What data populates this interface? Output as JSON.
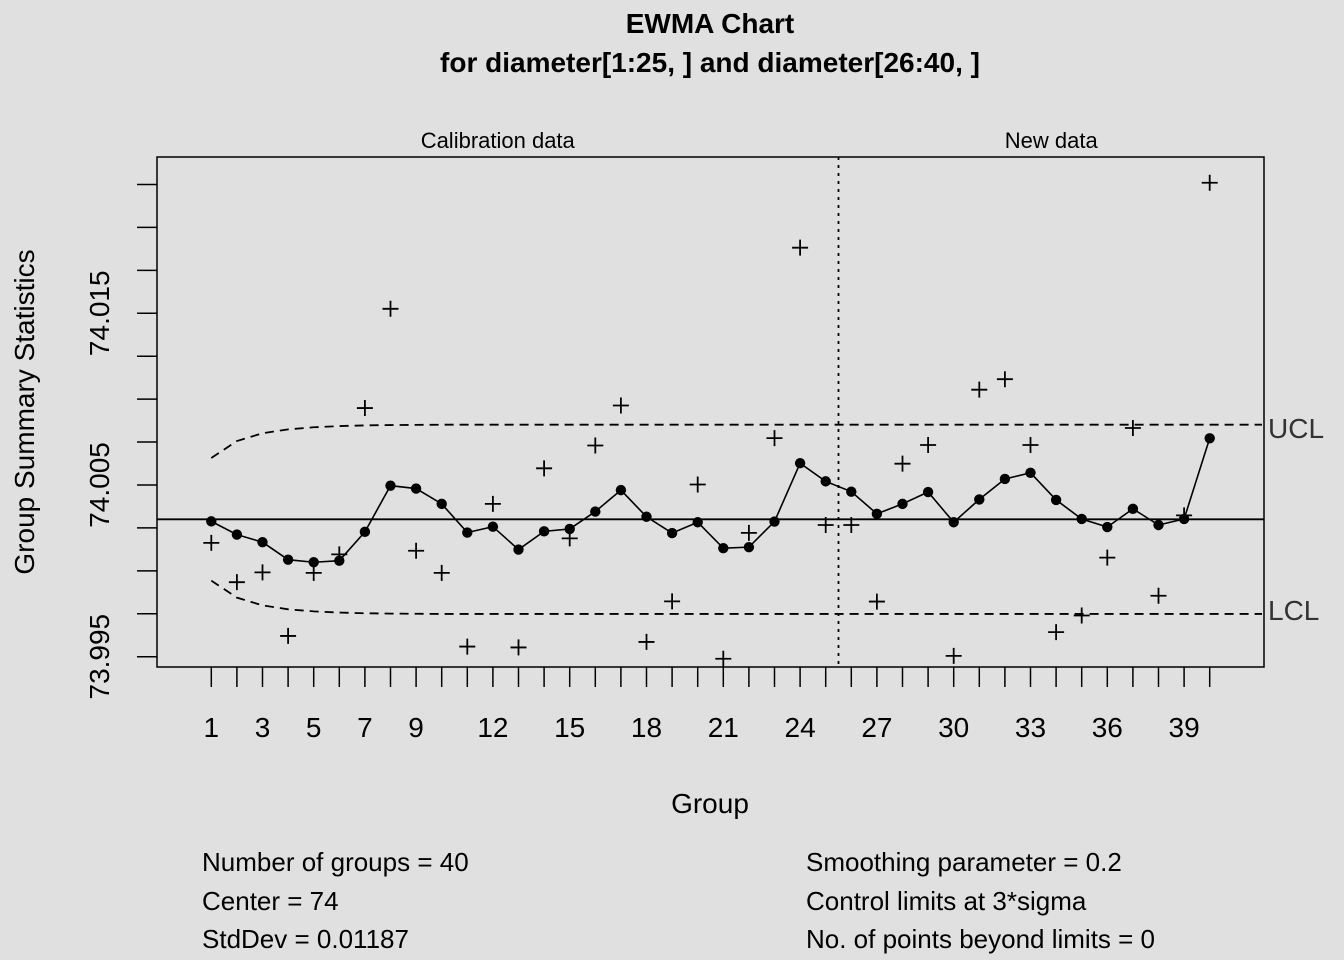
{
  "chart_data": {
    "type": "line",
    "title": "EWMA Chart",
    "subtitle": "for diameter[1:25, ] and diameter[26:40, ]",
    "xlabel": "Group",
    "ylabel": "Group Summary Statistics",
    "sections": [
      "Calibration data",
      "New data"
    ],
    "calibration_end": 25,
    "x": [
      1,
      2,
      3,
      4,
      5,
      6,
      7,
      8,
      9,
      10,
      11,
      12,
      13,
      14,
      15,
      16,
      17,
      18,
      19,
      20,
      21,
      22,
      23,
      24,
      25,
      26,
      27,
      28,
      29,
      30,
      31,
      32,
      33,
      34,
      35,
      36,
      37,
      38,
      39,
      40
    ],
    "x_tick_labels": [
      "1",
      "3",
      "5",
      "7",
      "9",
      "12",
      "15",
      "18",
      "21",
      "24",
      "27",
      "30",
      "33",
      "36",
      "39"
    ],
    "x_tick_values": [
      1,
      3,
      5,
      7,
      9,
      12,
      15,
      18,
      21,
      24,
      27,
      30,
      33,
      36,
      39
    ],
    "ylim": [
      73.9944,
      74.0241
    ],
    "y_ticks": [
      73.995,
      74.005,
      74.015
    ],
    "y_tick_labels": [
      "73.995",
      "74.005",
      "74.015"
    ],
    "center": 74.003,
    "series": [
      {
        "name": "",
        "marker": "plus",
        "values": [
          74.00163,
          73.99934,
          73.99991,
          73.99621,
          73.99988,
          74.00096,
          74.00948,
          74.01526,
          74.00117,
          73.99988,
          73.99559,
          74.0039,
          73.99554,
          74.00597,
          74.00189,
          74.0073,
          74.00963,
          73.99586,
          73.99822,
          74.00503,
          73.99488,
          74.00221,
          74.00773,
          74.01882,
          74.00267,
          74.00267,
          73.99821,
          74.00624,
          74.00733,
          73.99505,
          74.01055,
          74.01116,
          74.00733,
          73.99643,
          73.9974,
          74.00077,
          74.00832,
          73.99855,
          74.00323,
          74.0226
        ]
      },
      {
        "name": "",
        "marker": "dot",
        "values": [
          74.00288,
          74.00211,
          74.00167,
          74.00065,
          74.0005,
          74.00059,
          74.00227,
          74.00496,
          74.00479,
          74.0039,
          74.00223,
          74.00257,
          74.00124,
          74.0023,
          74.00244,
          74.00345,
          74.0047,
          74.00315,
          74.0022,
          74.00283,
          74.00132,
          74.00138,
          74.00287,
          74.00627,
          74.00521,
          74.00461,
          74.00332,
          74.0039,
          74.00459,
          74.00283,
          74.00416,
          74.00535,
          74.00571,
          74.00413,
          74.00302,
          74.00255,
          74.00361,
          74.00267,
          74.00302,
          74.00772
        ]
      }
    ],
    "ucl_label": "UCL",
    "lcl_label": "LCL",
    "ucl": [
      74.00657,
      74.00756,
      74.00801,
      74.00824,
      74.00836,
      74.00843,
      74.00847,
      74.00849,
      74.0085,
      74.00851,
      74.00851,
      74.00851,
      74.00851,
      74.00851,
      74.00851,
      74.00851,
      74.00851,
      74.00851,
      74.00851,
      74.00851,
      74.00851,
      74.00851,
      74.00851,
      74.00851,
      74.00851,
      74.00851,
      74.00851,
      74.00851,
      74.00851,
      74.00851,
      74.00851,
      74.00851,
      74.00851,
      74.00851,
      74.00851,
      74.00851,
      74.00851,
      74.00851,
      74.00851,
      74.00851
    ],
    "lcl": [
      73.99943,
      73.99844,
      73.99799,
      73.99776,
      73.99764,
      73.99757,
      73.99753,
      73.99751,
      73.9975,
      73.99749,
      73.99749,
      73.99749,
      73.99749,
      73.99749,
      73.99749,
      73.99749,
      73.99749,
      73.99749,
      73.99749,
      73.99749,
      73.99749,
      73.99749,
      73.99749,
      73.99749,
      73.99749,
      73.99749,
      73.99749,
      73.99749,
      73.99749,
      73.99749,
      73.99749,
      73.99749,
      73.99749,
      73.99749,
      73.99749,
      73.99749,
      73.99749,
      73.99749,
      73.99749,
      73.99749
    ],
    "stats_left": [
      "Number of groups = 40",
      "Center = 74",
      "StdDev = 0.01187"
    ],
    "stats_right": [
      "Smoothing parameter =  0.2",
      "Control limits at 3*sigma",
      "No. of points beyond limits = 0"
    ]
  }
}
